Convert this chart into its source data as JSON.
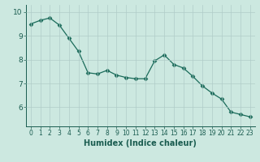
{
  "x": [
    0,
    1,
    2,
    3,
    4,
    5,
    6,
    7,
    8,
    9,
    10,
    11,
    12,
    13,
    14,
    15,
    16,
    17,
    18,
    19,
    20,
    21,
    22,
    23
  ],
  "y": [
    9.5,
    9.65,
    9.75,
    9.45,
    8.9,
    8.35,
    7.45,
    7.4,
    7.55,
    7.35,
    7.25,
    7.2,
    7.2,
    7.95,
    8.2,
    7.8,
    7.65,
    7.3,
    6.9,
    6.6,
    6.35,
    5.8,
    5.7,
    5.6
  ],
  "line_color": "#1a6b5a",
  "marker": "D",
  "marker_size": 2.5,
  "bg_color": "#cce8e0",
  "grid_color": "#b0ccc8",
  "xlabel": "Humidex (Indice chaleur)",
  "xlim": [
    -0.5,
    23.5
  ],
  "ylim": [
    5.2,
    10.3
  ],
  "yticks": [
    6,
    7,
    8,
    9,
    10
  ],
  "xticks": [
    0,
    1,
    2,
    3,
    4,
    5,
    6,
    7,
    8,
    9,
    10,
    11,
    12,
    13,
    14,
    15,
    16,
    17,
    18,
    19,
    20,
    21,
    22,
    23
  ],
  "tick_color": "#1a5c50",
  "label_color": "#1a5c50",
  "font_size_xtick": 5.5,
  "font_size_ytick": 6.5,
  "font_size_xlabel": 7.0
}
